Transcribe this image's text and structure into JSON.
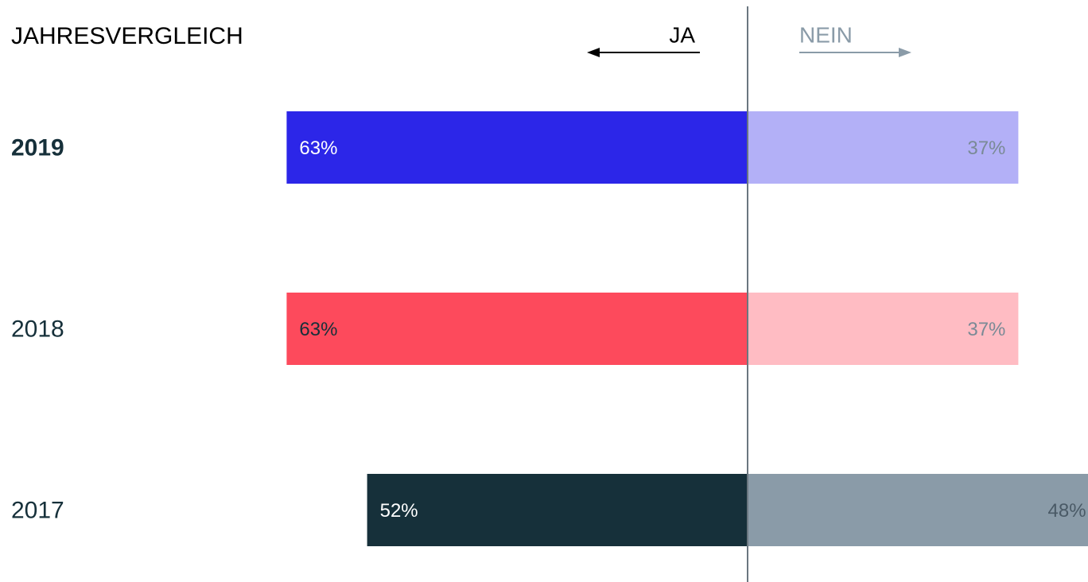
{
  "chart_data": {
    "type": "diverging-bar",
    "title": "JAHRESVERGLEICH",
    "categories": [
      "2019",
      "2018",
      "2017"
    ],
    "series": [
      {
        "name": "JA",
        "color": "#000000",
        "colors": [
          "#2c26e8",
          "#fd4a5c",
          "#16303a"
        ],
        "values": [
          63,
          63,
          52
        ],
        "value_labels": [
          "63%",
          "63%",
          "52%"
        ]
      },
      {
        "name": "NEIN",
        "color": "#8a9ba8",
        "colors": [
          "#b3b0f7",
          "#ffbcc3",
          "#8a9ba8"
        ],
        "values": [
          37,
          37,
          48
        ],
        "value_labels": [
          "37%",
          "37%",
          "48%"
        ]
      }
    ]
  }
}
